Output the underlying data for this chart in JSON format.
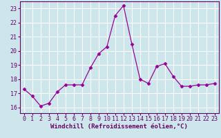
{
  "x": [
    0,
    1,
    2,
    3,
    4,
    5,
    6,
    7,
    8,
    9,
    10,
    11,
    12,
    13,
    14,
    15,
    16,
    17,
    18,
    19,
    20,
    21,
    22,
    23
  ],
  "y": [
    17.3,
    16.8,
    16.1,
    16.3,
    17.1,
    17.6,
    17.6,
    17.6,
    18.8,
    19.8,
    20.3,
    22.5,
    23.2,
    20.5,
    18.0,
    17.7,
    18.9,
    19.1,
    18.2,
    17.5,
    17.5,
    17.6,
    17.6,
    17.7
  ],
  "line_color": "#990099",
  "marker": "D",
  "marker_size": 2.5,
  "bg_color": "#cce6ec",
  "grid_color": "#ffffff",
  "xlabel": "Windchill (Refroidissement éolien,°C)",
  "xlabel_color": "#660066",
  "tick_color": "#660066",
  "ylim": [
    15.6,
    23.5
  ],
  "xlim": [
    -0.5,
    23.5
  ],
  "yticks": [
    16,
    17,
    18,
    19,
    20,
    21,
    22,
    23
  ],
  "xticks": [
    0,
    1,
    2,
    3,
    4,
    5,
    6,
    7,
    8,
    9,
    10,
    11,
    12,
    13,
    14,
    15,
    16,
    17,
    18,
    19,
    20,
    21,
    22,
    23
  ],
  "spine_color": "#660066",
  "font_size_label": 6.5,
  "font_size_tick": 6.0
}
